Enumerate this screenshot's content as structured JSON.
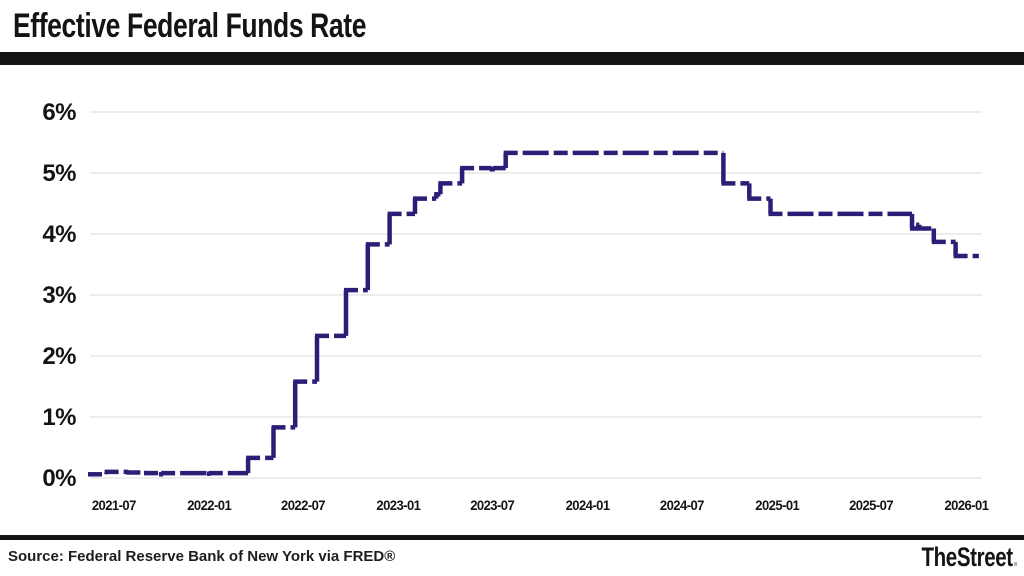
{
  "header": {
    "title": "Effective Federal Funds Rate"
  },
  "footer": {
    "source": "Source: Federal Reserve Bank of New York via FRED®",
    "logo_text": "TheStreet",
    "logo_dot": "."
  },
  "chart_data": {
    "type": "line",
    "title": "Effective Federal Funds Rate",
    "series_name": "Effective Federal Funds Rate (%)",
    "step_mode": "after",
    "line_color": "#2c1e76",
    "line_style": "dashed",
    "grid_color": "#e2e2e2",
    "grid": "horizontal-only",
    "legend_position": "none",
    "xlabel": "",
    "ylabel": "",
    "ylim": [
      0,
      6
    ],
    "yticks": [
      {
        "label": "0%",
        "value": 0
      },
      {
        "label": "1%",
        "value": 1
      },
      {
        "label": "2%",
        "value": 2
      },
      {
        "label": "3%",
        "value": 3
      },
      {
        "label": "4%",
        "value": 4
      },
      {
        "label": "5%",
        "value": 5
      },
      {
        "label": "6%",
        "value": 6
      }
    ],
    "x_domain": [
      "2021-05-16",
      "2026-01-31"
    ],
    "xticks": [
      {
        "label": "2021-07",
        "date": "2021-07-01"
      },
      {
        "label": "2022-01",
        "date": "2022-01-01"
      },
      {
        "label": "2022-07",
        "date": "2022-07-01"
      },
      {
        "label": "2023-01",
        "date": "2023-01-01"
      },
      {
        "label": "2023-07",
        "date": "2023-07-01"
      },
      {
        "label": "2024-01",
        "date": "2024-01-01"
      },
      {
        "label": "2024-07",
        "date": "2024-07-01"
      },
      {
        "label": "2025-01",
        "date": "2025-01-01"
      },
      {
        "label": "2025-07",
        "date": "2025-07-01"
      },
      {
        "label": "2026-01",
        "date": "2026-01-01"
      }
    ],
    "points": [
      {
        "date": "2021-05-16",
        "value": 0.06
      },
      {
        "date": "2021-06-17",
        "value": 0.1
      },
      {
        "date": "2021-07-29",
        "value": 0.09
      },
      {
        "date": "2021-09-01",
        "value": 0.08
      },
      {
        "date": "2021-09-30",
        "value": 0.06
      },
      {
        "date": "2021-10-04",
        "value": 0.08
      },
      {
        "date": "2021-12-31",
        "value": 0.07
      },
      {
        "date": "2022-01-04",
        "value": 0.08
      },
      {
        "date": "2022-03-17",
        "value": 0.33
      },
      {
        "date": "2022-05-05",
        "value": 0.83
      },
      {
        "date": "2022-06-16",
        "value": 1.58
      },
      {
        "date": "2022-07-28",
        "value": 2.33
      },
      {
        "date": "2022-09-22",
        "value": 3.08
      },
      {
        "date": "2022-11-03",
        "value": 3.83
      },
      {
        "date": "2022-12-15",
        "value": 4.33
      },
      {
        "date": "2023-02-02",
        "value": 4.58
      },
      {
        "date": "2023-03-15",
        "value": 4.65
      },
      {
        "date": "2023-03-23",
        "value": 4.83
      },
      {
        "date": "2023-05-04",
        "value": 5.08
      },
      {
        "date": "2023-06-30",
        "value": 5.06
      },
      {
        "date": "2023-07-06",
        "value": 5.08
      },
      {
        "date": "2023-07-27",
        "value": 5.33
      },
      {
        "date": "2024-09-19",
        "value": 4.83
      },
      {
        "date": "2024-11-08",
        "value": 4.58
      },
      {
        "date": "2024-12-19",
        "value": 4.33
      },
      {
        "date": "2025-09-18",
        "value": 4.09
      },
      {
        "date": "2025-09-30",
        "value": 4.15
      },
      {
        "date": "2025-10-02",
        "value": 4.09
      },
      {
        "date": "2025-10-30",
        "value": 3.87
      },
      {
        "date": "2025-12-11",
        "value": 3.64
      },
      {
        "date": "2026-01-25",
        "value": 3.64
      }
    ]
  }
}
